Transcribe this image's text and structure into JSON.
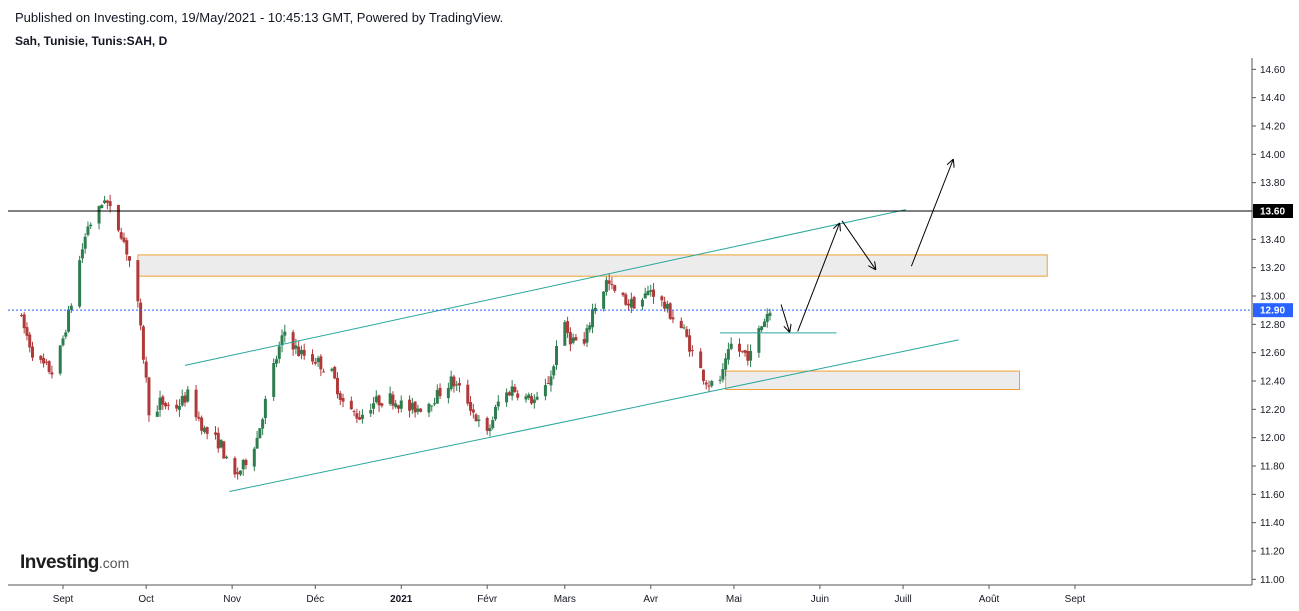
{
  "header": {
    "published": "Published on Investing.com, 19/May/2021 - 10:45:13 GMT, Powered by TradingView.",
    "symbol": "Sah, Tunisie, Tunis:SAH, D"
  },
  "logo": {
    "name": "Investing",
    "suffix": ".com"
  },
  "colors": {
    "up": "#2e7d4f",
    "down": "#b03a3a",
    "trendline": "#26a69a",
    "zone_border": "#f0a030",
    "zone_fill": "#ececec",
    "current_price": "#2962ff",
    "resistance": "#000000"
  },
  "chart_data": {
    "type": "candlestick",
    "ylim": [
      10.96,
      14.68
    ],
    "y_ticks": [
      "14.60",
      "14.40",
      "14.20",
      "14.00",
      "13.80",
      "13.60",
      "13.40",
      "13.20",
      "13.00",
      "12.80",
      "12.60",
      "12.40",
      "12.20",
      "12.00",
      "11.80",
      "11.60",
      "11.40",
      "11.20",
      "11.00"
    ],
    "x_labels": [
      {
        "label": "Sept",
        "day": 0
      },
      {
        "label": "Oct",
        "day": 30
      },
      {
        "label": "Nov",
        "day": 61
      },
      {
        "label": "Déc",
        "day": 91
      },
      {
        "label": "2021",
        "day": 122,
        "bold": true
      },
      {
        "label": "Févr",
        "day": 153
      },
      {
        "label": "Mars",
        "day": 181
      },
      {
        "label": "Avr",
        "day": 212
      },
      {
        "label": "Mai",
        "day": 242
      },
      {
        "label": "Juin",
        "day": 273
      },
      {
        "label": "Juill",
        "day": 303
      },
      {
        "label": "Août",
        "day": 334
      },
      {
        "label": "Sept",
        "day": 365
      }
    ],
    "price_labels": [
      {
        "value": 13.6,
        "label": "13.60",
        "color": "#000000"
      },
      {
        "value": 12.9,
        "label": "12.90",
        "color": "#2962ff"
      }
    ],
    "path": [
      [
        "2020-08-16",
        12.88
      ],
      [
        "2020-08-22",
        12.55
      ],
      [
        "2020-08-29",
        12.45
      ],
      [
        "2020-09-04",
        12.95
      ],
      [
        "2020-09-07",
        13.25
      ],
      [
        "2020-09-10",
        13.5
      ],
      [
        "2020-09-13",
        13.55
      ],
      [
        "2020-09-16",
        13.7
      ],
      [
        "2020-09-19",
        13.55
      ],
      [
        "2020-09-22",
        13.45
      ],
      [
        "2020-09-25",
        13.25
      ],
      [
        "2020-09-27",
        13.1
      ],
      [
        "2020-10-01",
        12.4
      ],
      [
        "2020-10-03",
        12.0
      ],
      [
        "2020-10-06",
        12.25
      ],
      [
        "2020-10-11",
        12.2
      ],
      [
        "2020-10-16",
        12.3
      ],
      [
        "2020-10-22",
        12.05
      ],
      [
        "2020-10-28",
        11.95
      ],
      [
        "2020-11-01",
        11.7
      ],
      [
        "2020-11-05",
        11.8
      ],
      [
        "2020-11-10",
        12.0
      ],
      [
        "2020-11-16",
        12.5
      ],
      [
        "2020-11-20",
        12.75
      ],
      [
        "2020-11-25",
        12.6
      ],
      [
        "2020-12-01",
        12.55
      ],
      [
        "2020-12-07",
        12.45
      ],
      [
        "2020-12-12",
        12.2
      ],
      [
        "2020-12-17",
        12.15
      ],
      [
        "2020-12-22",
        12.25
      ],
      [
        "2020-12-28",
        12.28
      ],
      [
        "2021-01-04",
        12.2
      ],
      [
        "2021-01-09",
        12.22
      ],
      [
        "2021-01-14",
        12.3
      ],
      [
        "2021-01-19",
        12.4
      ],
      [
        "2021-01-24",
        12.3
      ],
      [
        "2021-01-29",
        12.1
      ],
      [
        "2021-02-01",
        12.02
      ],
      [
        "2021-02-05",
        12.25
      ],
      [
        "2021-02-10",
        12.35
      ],
      [
        "2021-02-15",
        12.28
      ],
      [
        "2021-02-20",
        12.25
      ],
      [
        "2021-02-25",
        12.5
      ],
      [
        "2021-02-27",
        12.85
      ],
      [
        "2021-03-03",
        12.7
      ],
      [
        "2021-03-08",
        12.65
      ],
      [
        "2021-03-11",
        12.9
      ],
      [
        "2021-03-14",
        13.0
      ],
      [
        "2021-03-16",
        13.1
      ],
      [
        "2021-03-20",
        13.0
      ],
      [
        "2021-03-24",
        12.95
      ],
      [
        "2021-03-28",
        12.95
      ],
      [
        "2021-04-01",
        13.05
      ],
      [
        "2021-04-05",
        12.95
      ],
      [
        "2021-04-09",
        12.85
      ],
      [
        "2021-04-13",
        12.75
      ],
      [
        "2021-04-17",
        12.55
      ],
      [
        "2021-04-21",
        12.4
      ],
      [
        "2021-04-24",
        12.35
      ],
      [
        "2021-04-27",
        12.45
      ],
      [
        "2021-04-30",
        12.65
      ],
      [
        "2021-05-04",
        12.6
      ],
      [
        "2021-05-07",
        12.58
      ],
      [
        "2021-05-10",
        12.75
      ],
      [
        "2021-05-13",
        12.88
      ],
      [
        "2021-05-16",
        12.9
      ]
    ],
    "levels": [
      {
        "name": "resistance",
        "value": 13.6
      },
      {
        "name": "current-price",
        "value": 12.9
      }
    ],
    "zones": [
      {
        "name": "resistance-zone",
        "from_day": 27,
        "to_day": 355,
        "low": 13.14,
        "high": 13.29
      },
      {
        "name": "support-zone",
        "from_day": 239,
        "to_day": 345,
        "low": 12.34,
        "high": 12.47
      }
    ],
    "trendlines": [
      {
        "name": "channel-upper",
        "x1": 44,
        "y1": 12.51,
        "x2": 304,
        "y2": 13.61
      },
      {
        "name": "channel-lower",
        "x1": 60,
        "y1": 11.62,
        "x2": 323,
        "y2": 12.69
      },
      {
        "name": "short-support",
        "x1": 237,
        "y1": 12.74,
        "x2": 279,
        "y2": 12.74
      }
    ],
    "arrows": [
      {
        "x1": 259,
        "y1": 12.94,
        "x2": 262,
        "y2": 12.75
      },
      {
        "x1": 265,
        "y1": 12.75,
        "x2": 280,
        "y2": 13.51
      },
      {
        "x1": 281,
        "y1": 13.53,
        "x2": 293,
        "y2": 13.19
      },
      {
        "x1": 306,
        "y1": 13.21,
        "x2": 321,
        "y2": 13.96
      }
    ]
  }
}
